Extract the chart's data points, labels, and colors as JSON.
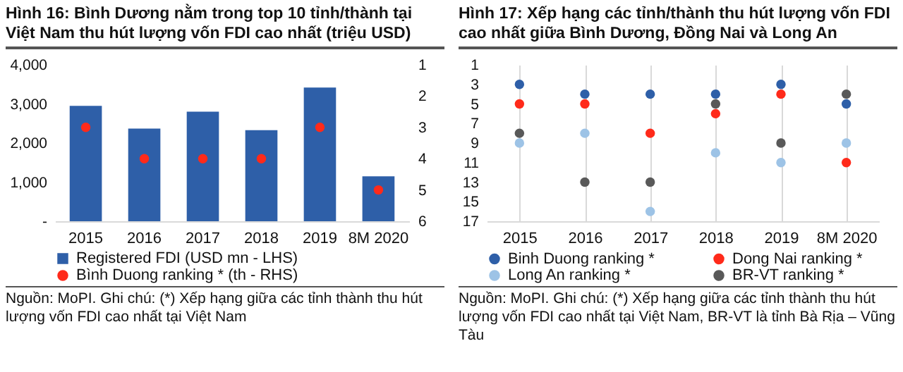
{
  "chart_data": [
    {
      "type": "bar",
      "title": "Hình 16: Bình Dương nằm trong top 10 tỉnh/thành tại Việt Nam thu hút lượng vốn FDI cao nhất (triệu USD)",
      "categories": [
        "2015",
        "2016",
        "2017",
        "2018",
        "2019",
        "8M 2020"
      ],
      "series": [
        {
          "name": "Registered FDI (USD mn - LHS)",
          "color": "#2e5fa8",
          "values": [
            2950,
            2370,
            2800,
            2330,
            3420,
            1150
          ]
        },
        {
          "name": "Bình Duong ranking * (th - RHS)",
          "type": "scatter",
          "axis": "y2",
          "color": "#ff2a1a",
          "values": [
            3,
            4,
            4,
            4,
            3,
            5
          ]
        }
      ],
      "ylim": [
        0,
        4000
      ],
      "yticks": [
        {
          "value": 0,
          "label": "-"
        },
        {
          "value": 1000,
          "label": "1,000"
        },
        {
          "value": 2000,
          "label": "2,000"
        },
        {
          "value": 3000,
          "label": "3,000"
        },
        {
          "value": 4000,
          "label": "4,000"
        }
      ],
      "y2lim": [
        6,
        1
      ],
      "y2ticks": [
        1,
        2,
        3,
        4,
        5,
        6
      ],
      "marker": "circle",
      "legend": "bottom",
      "annotations": [
        "Nguồn: MoPI. Ghi chú: (*) Xếp hạng giữa các tỉnh thành thu hút lượng vốn FDI cao nhất tại Việt Nam"
      ]
    },
    {
      "type": "scatter",
      "title": "Hình 17: Xếp hạng các tỉnh/thành thu hút lượng vốn FDI cao nhất giữa Bình Dương, Đồng Nai và Long An",
      "categories": [
        "2015",
        "2016",
        "2017",
        "2018",
        "2019",
        "8M 2020"
      ],
      "series": [
        {
          "name": "Binh Duong ranking *",
          "color": "#2e5fa8",
          "values": [
            3,
            4,
            4,
            4,
            3,
            5
          ]
        },
        {
          "name": "Dong Nai ranking *",
          "color": "#ff2a1a",
          "values": [
            5,
            5,
            8,
            6,
            4,
            11
          ]
        },
        {
          "name": "Long An ranking *",
          "color": "#9dc3e6",
          "values": [
            9,
            8,
            16,
            10,
            11,
            9
          ]
        },
        {
          "name": "BR-VT ranking *",
          "color": "#595959",
          "values": [
            8,
            13,
            13,
            5,
            9,
            4
          ]
        }
      ],
      "ylim": [
        17,
        1
      ],
      "yticks": [
        1,
        3,
        5,
        7,
        9,
        11,
        13,
        15,
        17
      ],
      "grid": "x",
      "marker": "circle",
      "legend": "bottom",
      "annotations": [
        "Nguồn: MoPI. Ghi chú: (*) Xếp hạng giữa các tỉnh thành thu hút lượng vốn FDI cao nhất tại Việt Nam, BR-VT là tỉnh Bà Rịa – Vũng Tàu"
      ]
    }
  ]
}
